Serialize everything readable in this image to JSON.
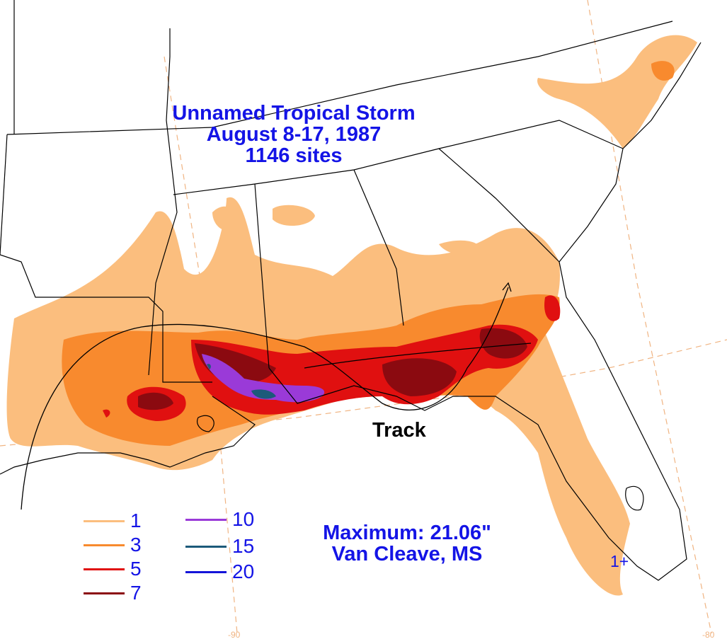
{
  "title": {
    "line1": "Unnamed Tropical Storm",
    "line2": "August 8-17, 1987",
    "line3": "1146 sites"
  },
  "maximum": {
    "line1": "Maximum:  21.06\"",
    "line2": "Van Cleave, MS"
  },
  "track_label": "Track",
  "plus_label": "1+",
  "longitude_labels": [
    "-90",
    "-80"
  ],
  "legend": [
    {
      "value": "1",
      "color": "#fbbe7e"
    },
    {
      "value": "3",
      "color": "#f88a2e"
    },
    {
      "value": "5",
      "color": "#e01010"
    },
    {
      "value": "7",
      "color": "#8b0a10"
    },
    {
      "value": "10",
      "color": "#9a3ad8"
    },
    {
      "value": "15",
      "color": "#1c5a7a"
    },
    {
      "value": "20",
      "color": "#1414d8"
    }
  ],
  "colors": {
    "text": "#1414e6",
    "boundaries": "#000000",
    "graticule": "#f0b482"
  }
}
